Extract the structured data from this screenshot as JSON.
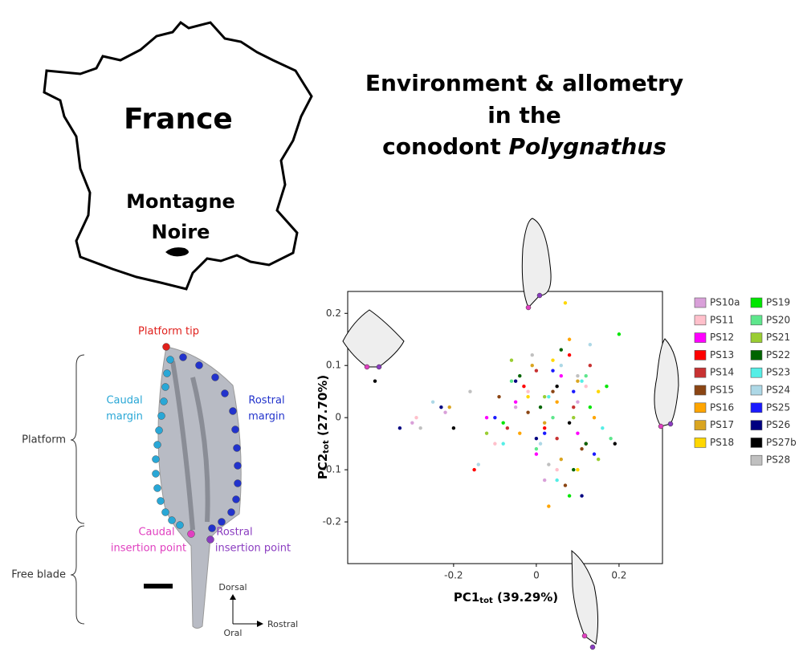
{
  "title": {
    "lines": [
      "Environment & allometry",
      "in the",
      "conodont "
    ],
    "italic": "Polygnathus"
  },
  "map": {
    "country": "France",
    "region": [
      "Montagne",
      "Noire"
    ]
  },
  "specimen": {
    "platform_tip": "Platform tip",
    "caudal_margin": [
      "Caudal",
      "margin"
    ],
    "rostral_margin": [
      "Rostral",
      "margin"
    ],
    "platform": "Platform",
    "free_blade": "Free blade",
    "caudal_insertion": [
      "Caudal",
      "insertion point"
    ],
    "rostral_insertion": [
      "Rostral",
      "insertion point"
    ],
    "dorsal": "Dorsal",
    "oral": "Oral",
    "rostral": "Rostral"
  },
  "chart_data": {
    "type": "scatter",
    "xlabel": {
      "main": "PC1",
      "sub": "tot",
      "rest": " (39.29%)"
    },
    "ylabel": {
      "main": "PC2",
      "sub": "tot",
      "rest": " (27.70%)"
    },
    "xlim": [
      -0.456,
      0.305
    ],
    "ylim": [
      -0.28,
      0.242
    ],
    "xticks": [
      -0.2,
      0,
      0.2
    ],
    "yticks": [
      -0.2,
      -0.1,
      0,
      0.1,
      0.2
    ],
    "series": [
      {
        "name": "PS10a",
        "color": "#d9a0d9",
        "x": [
          -0.3,
          -0.22,
          0.02,
          0.1,
          -0.05
        ],
        "y": [
          -0.01,
          0.01,
          -0.12,
          0.03,
          0.02
        ]
      },
      {
        "name": "PS11",
        "color": "#ffc0cb",
        "x": [
          -0.29,
          -0.1,
          0.05,
          0.12,
          -0.02
        ],
        "y": [
          0.0,
          -0.05,
          -0.1,
          0.06,
          0.05
        ]
      },
      {
        "name": "PS12",
        "color": "#ff00ff",
        "x": [
          -0.05,
          0.0,
          0.06,
          0.1,
          -0.12
        ],
        "y": [
          0.03,
          -0.07,
          0.08,
          -0.03,
          0.0
        ]
      },
      {
        "name": "PS13",
        "color": "#ff0000",
        "x": [
          -0.03,
          0.02,
          0.08,
          -0.15,
          0.12
        ],
        "y": [
          0.06,
          -0.02,
          0.12,
          -0.1,
          -0.05
        ]
      },
      {
        "name": "PS14",
        "color": "#c83232",
        "x": [
          0.0,
          0.05,
          0.09,
          -0.07,
          0.13
        ],
        "y": [
          0.09,
          -0.04,
          0.02,
          -0.02,
          0.1
        ]
      },
      {
        "name": "PS15",
        "color": "#8b4513",
        "x": [
          -0.02,
          0.04,
          0.11,
          -0.09,
          0.07
        ],
        "y": [
          0.01,
          0.05,
          -0.06,
          0.04,
          -0.13
        ]
      },
      {
        "name": "PS16",
        "color": "#ffa500",
        "x": [
          0.03,
          0.08,
          -0.04,
          0.14,
          0.05
        ],
        "y": [
          -0.17,
          0.15,
          -0.03,
          0.0,
          0.03
        ]
      },
      {
        "name": "PS17",
        "color": "#daa520",
        "x": [
          -0.21,
          -0.01,
          0.06,
          0.1,
          0.02
        ],
        "y": [
          0.02,
          0.1,
          -0.08,
          0.07,
          -0.01
        ]
      },
      {
        "name": "PS18",
        "color": "#ffd700",
        "x": [
          0.07,
          -0.02,
          0.1,
          0.04,
          0.15
        ],
        "y": [
          0.22,
          0.04,
          -0.1,
          0.11,
          0.05
        ]
      },
      {
        "name": "PS19",
        "color": "#00e600",
        "x": [
          0.17,
          0.2,
          0.08,
          -0.08,
          0.13
        ],
        "y": [
          0.06,
          0.16,
          -0.15,
          -0.01,
          0.02
        ]
      },
      {
        "name": "PS20",
        "color": "#5ee68c",
        "x": [
          0.0,
          0.12,
          0.18,
          -0.06,
          0.04
        ],
        "y": [
          -0.06,
          0.08,
          -0.04,
          0.07,
          0.0
        ]
      },
      {
        "name": "PS21",
        "color": "#9acd32",
        "x": [
          -0.06,
          0.09,
          0.15,
          0.02,
          -0.12
        ],
        "y": [
          0.11,
          0.0,
          -0.08,
          0.04,
          -0.03
        ]
      },
      {
        "name": "PS22",
        "color": "#006400",
        "x": [
          0.01,
          0.06,
          0.12,
          -0.04,
          0.09
        ],
        "y": [
          0.02,
          0.13,
          -0.05,
          0.08,
          -0.1
        ]
      },
      {
        "name": "PS23",
        "color": "#55eee6",
        "x": [
          -0.08,
          0.03,
          0.11,
          0.16,
          0.05
        ],
        "y": [
          -0.05,
          0.04,
          0.07,
          -0.02,
          -0.12
        ]
      },
      {
        "name": "PS24",
        "color": "#add8e6",
        "x": [
          -0.25,
          -0.14,
          0.06,
          0.13,
          0.01
        ],
        "y": [
          0.03,
          -0.09,
          0.1,
          0.14,
          -0.05
        ]
      },
      {
        "name": "PS25",
        "color": "#1a1aff",
        "x": [
          -0.1,
          0.02,
          0.09,
          0.14,
          0.04
        ],
        "y": [
          0.0,
          -0.03,
          0.05,
          -0.07,
          0.09
        ]
      },
      {
        "name": "PS26",
        "color": "#000080",
        "x": [
          -0.33,
          -0.23,
          0.0,
          0.11,
          -0.05
        ],
        "y": [
          -0.02,
          0.02,
          -0.04,
          -0.15,
          0.07
        ]
      },
      {
        "name": "PS27b",
        "color": "#000000",
        "x": [
          -0.39,
          -0.2,
          0.05,
          0.19,
          0.08
        ],
        "y": [
          0.07,
          -0.02,
          0.06,
          -0.05,
          -0.01
        ]
      },
      {
        "name": "PS28",
        "color": "#c0c0c0",
        "x": [
          -0.28,
          -0.16,
          0.03,
          0.1,
          -0.01
        ],
        "y": [
          -0.02,
          0.05,
          -0.09,
          0.08,
          0.12
        ]
      }
    ]
  }
}
